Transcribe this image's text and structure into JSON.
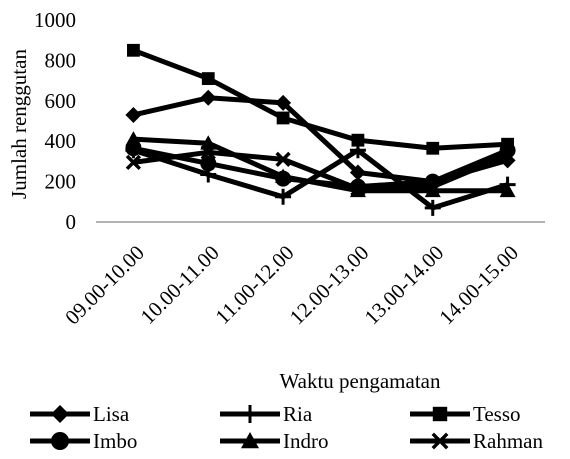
{
  "chart_data": {
    "type": "line",
    "title": "",
    "xlabel": "Waktu pengamatan",
    "ylabel": "Jumlah renggutan",
    "ylim": [
      0,
      1000
    ],
    "yticks": [
      "0",
      "200",
      "400",
      "600",
      "800",
      "1000"
    ],
    "categories": [
      "09.00-10.00",
      "10.00-11.00",
      "11.00-12.00",
      "12.00-13.00",
      "13.00-14.00",
      "14.00-15.00"
    ],
    "grid": false,
    "legend_position": "bottom",
    "series": [
      {
        "name": "Lisa",
        "marker": "diamond",
        "values": [
          530,
          615,
          590,
          245,
          200,
          305
        ]
      },
      {
        "name": "Ria",
        "marker": "plus",
        "values": [
          355,
          235,
          125,
          355,
          70,
          185
        ]
      },
      {
        "name": "Tesso",
        "marker": "square",
        "values": [
          850,
          710,
          515,
          405,
          365,
          385
        ]
      },
      {
        "name": "Imbo",
        "marker": "circle",
        "values": [
          365,
          290,
          215,
          175,
          200,
          355
        ]
      },
      {
        "name": "Indro",
        "marker": "triangle",
        "values": [
          410,
          390,
          225,
          155,
          155,
          155
        ]
      },
      {
        "name": "Rahman",
        "marker": "x",
        "values": [
          295,
          345,
          310,
          165,
          175,
          330
        ]
      }
    ]
  }
}
